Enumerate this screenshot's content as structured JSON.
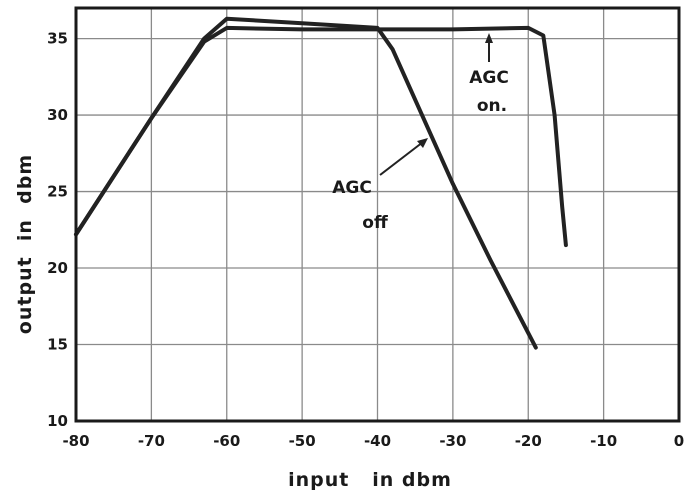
{
  "chart_data": {
    "type": "line",
    "xlabel": "input   in dbm",
    "ylabel": "output  in  dbm",
    "xlim": [
      -80,
      0
    ],
    "ylim": [
      10,
      37
    ],
    "grid": true,
    "x_ticks": [
      -80,
      -70,
      -60,
      -50,
      -40,
      -30,
      -20,
      -10,
      0
    ],
    "x_tick_labels": [
      "-80",
      "-70",
      "-60",
      "-50",
      "-40",
      "-30",
      "-20",
      "-10",
      "0"
    ],
    "y_ticks": [
      10,
      15,
      20,
      25,
      30,
      35
    ],
    "y_tick_labels": [
      "10",
      "15",
      "20",
      "25",
      "30",
      "35"
    ],
    "series": [
      {
        "id": "agc-on",
        "points": [
          [
            -80,
            22.2
          ],
          [
            -70,
            29.8
          ],
          [
            -63,
            34.8
          ],
          [
            -60,
            35.7
          ],
          [
            -50,
            35.6
          ],
          [
            -40,
            35.6
          ],
          [
            -30,
            35.6
          ],
          [
            -20,
            35.7
          ],
          [
            -18,
            35.2
          ],
          [
            -16.5,
            30
          ],
          [
            -15.5,
            24
          ],
          [
            -15,
            21.5
          ]
        ]
      },
      {
        "id": "agc-off",
        "points": [
          [
            -80,
            22.2
          ],
          [
            -70,
            29.8
          ],
          [
            -63,
            35.0
          ],
          [
            -60,
            36.3
          ],
          [
            -50,
            36.0
          ],
          [
            -40,
            35.7
          ],
          [
            -38,
            34.3
          ],
          [
            -35,
            31
          ],
          [
            -30,
            25.5
          ],
          [
            -25,
            20.5
          ],
          [
            -19,
            14.8
          ]
        ]
      }
    ],
    "annotations": {
      "agc_on_line1": "AGC",
      "agc_on_line2": "on.",
      "agc_off_line1": "AGC",
      "agc_off_line2": "off"
    },
    "line_color": "#222222",
    "grid_color": "#8a8a8a"
  }
}
